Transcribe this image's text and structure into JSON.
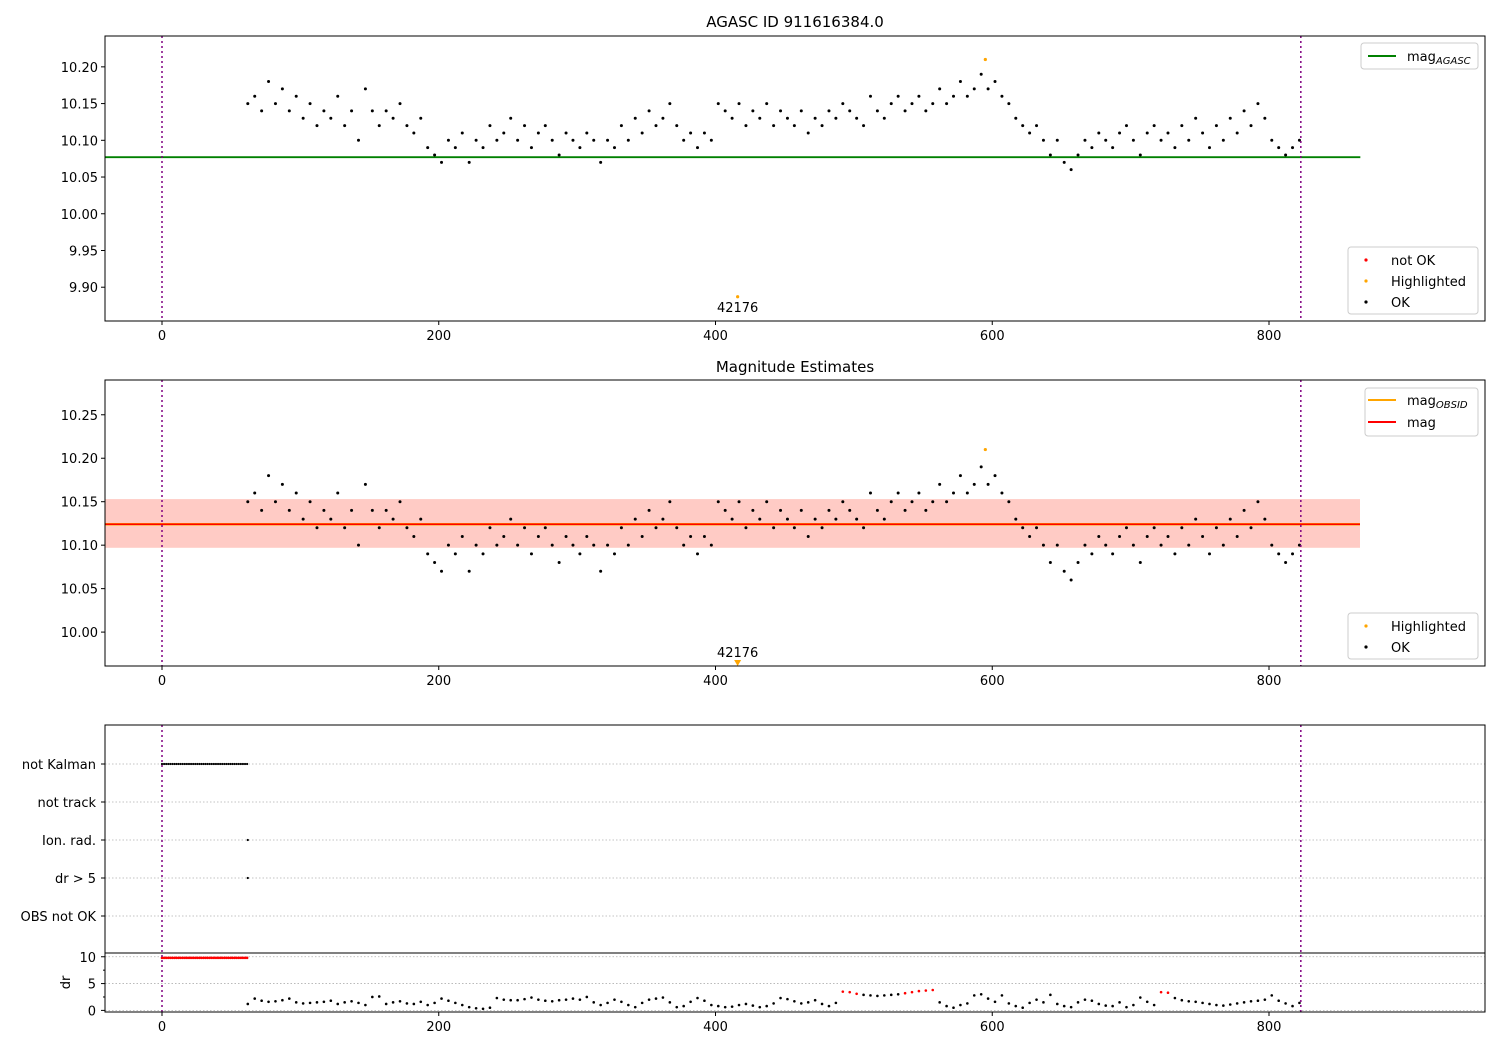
{
  "chart_data": [
    {
      "type": "scatter",
      "title": "AGASC ID 911616384.0",
      "xlim": [
        -41,
        956
      ],
      "ylim": [
        9.854,
        10.242
      ],
      "xticks": [
        0,
        200,
        400,
        600,
        800
      ],
      "yticks": [
        9.9,
        9.95,
        10.0,
        10.05,
        10.1,
        10.15,
        10.2
      ],
      "lines": [
        {
          "name": "mag_AGASC",
          "label": "mag",
          "sub": "AGASC",
          "y": 10.077,
          "x_range": [
            -41,
            866
          ],
          "color": "#008000"
        }
      ],
      "vlines": [
        0,
        823
      ],
      "highlighted": [
        {
          "x": 595,
          "y": 10.21
        },
        {
          "x": 416,
          "y": 9.887
        }
      ],
      "annotation": {
        "text": "42176",
        "x": 416
      },
      "legend_top": "top-right",
      "legend_bottom": "bottom-right",
      "legend": [
        {
          "label": "not OK",
          "color": "#ff0000"
        },
        {
          "label": "Highlighted",
          "color": "#ffa500"
        },
        {
          "label": "OK",
          "color": "#000000"
        }
      ]
    },
    {
      "type": "scatter",
      "title": "Magnitude Estimates",
      "xlim": [
        -41,
        956
      ],
      "ylim": [
        9.961,
        10.29
      ],
      "xticks": [
        0,
        200,
        400,
        600,
        800
      ],
      "yticks": [
        10.0,
        10.05,
        10.1,
        10.15,
        10.2,
        10.25
      ],
      "lines": [
        {
          "name": "mag_OBSID",
          "label": "mag",
          "sub": "OBSID",
          "y": 10.124,
          "color": "#ffa500"
        },
        {
          "name": "mag",
          "label": "mag",
          "sub": "",
          "y": 10.124,
          "color": "#ff0000"
        }
      ],
      "band": [
        10.097,
        10.153
      ],
      "vlines": [
        0,
        823
      ],
      "highlighted": [
        {
          "x": 595,
          "y": 10.21
        }
      ],
      "offscale_marker": {
        "x": 416,
        "text": "42176"
      },
      "legend": [
        {
          "label": "Highlighted",
          "color": "#ffa500"
        },
        {
          "label": "OK",
          "color": "#000000"
        }
      ]
    },
    {
      "type": "scatter",
      "title": "",
      "flags": [
        "not Kalman",
        "not track",
        "Ion. rad.",
        "dr > 5",
        "OBS not OK"
      ],
      "flag_points": {
        "not Kalman": [
          0,
          62
        ],
        "Ion. rad.": [
          62
        ],
        "dr > 5": [
          62
        ]
      },
      "dr_label": "dr",
      "dr_ylim": [
        -0.3,
        10.7
      ],
      "dr_yticks": [
        0,
        5,
        10
      ],
      "dr_red_threshold": 3,
      "dr_not_kalman": 9.8,
      "xticks": [
        0,
        200,
        400,
        600,
        800
      ],
      "vlines": [
        0,
        823
      ]
    }
  ],
  "series": {
    "x_start": 62,
    "x_step": 5,
    "mag": [
      10.15,
      10.16,
      10.14,
      10.18,
      10.15,
      10.17,
      10.14,
      10.16,
      10.13,
      10.15,
      10.12,
      10.14,
      10.13,
      10.16,
      10.12,
      10.14,
      10.1,
      10.17,
      10.14,
      10.12,
      10.14,
      10.13,
      10.15,
      10.12,
      10.11,
      10.13,
      10.09,
      10.08,
      10.07,
      10.1,
      10.09,
      10.11,
      10.07,
      10.1,
      10.09,
      10.12,
      10.1,
      10.11,
      10.13,
      10.1,
      10.12,
      10.09,
      10.11,
      10.12,
      10.1,
      10.08,
      10.11,
      10.1,
      10.09,
      10.11,
      10.1,
      10.07,
      10.1,
      10.09,
      10.12,
      10.1,
      10.13,
      10.11,
      10.14,
      10.12,
      10.13,
      10.15,
      10.12,
      10.1,
      10.11,
      10.09,
      10.11,
      10.1,
      10.15,
      10.14,
      10.13,
      10.15,
      10.12,
      10.14,
      10.13,
      10.15,
      10.12,
      10.14,
      10.13,
      10.12,
      10.14,
      10.11,
      10.13,
      10.12,
      10.14,
      10.13,
      10.15,
      10.14,
      10.13,
      10.12,
      10.16,
      10.14,
      10.13,
      10.15,
      10.16,
      10.14,
      10.15,
      10.16,
      10.14,
      10.15,
      10.17,
      10.15,
      10.16,
      10.18,
      10.16,
      10.17,
      10.19,
      10.17,
      10.18,
      10.16,
      10.15,
      10.13,
      10.12,
      10.11,
      10.12,
      10.1,
      10.08,
      10.1,
      10.07,
      10.06,
      10.08,
      10.1,
      10.09,
      10.11,
      10.1,
      10.09,
      10.11,
      10.12,
      10.1,
      10.08,
      10.11,
      10.12,
      10.1,
      10.11,
      10.09,
      10.12,
      10.1,
      10.13,
      10.11,
      10.09,
      10.12,
      10.1,
      10.13,
      10.11,
      10.14,
      10.12,
      10.15,
      10.13,
      10.1,
      10.09,
      10.08,
      10.09,
      10.1
    ],
    "dr": [
      1.2,
      2.2,
      1.8,
      1.6,
      1.7,
      1.9,
      2.2,
      1.5,
      1.3,
      1.4,
      1.5,
      1.6,
      1.8,
      1.2,
      1.5,
      1.7,
      1.4,
      1.0,
      2.5,
      2.6,
      1.2,
      1.5,
      1.7,
      1.3,
      1.2,
      1.6,
      1.0,
      1.4,
      2.2,
      1.8,
      1.4,
      1.0,
      0.6,
      0.4,
      0.3,
      0.5,
      2.3,
      2.0,
      1.9,
      1.9,
      2.1,
      2.4,
      2.0,
      1.8,
      1.7,
      1.9,
      2.0,
      2.2,
      2.0,
      2.5,
      1.5,
      1.0,
      1.4,
      2.0,
      1.6,
      1.0,
      0.6,
      1.4,
      2.0,
      2.2,
      2.4,
      1.5,
      0.6,
      0.8,
      1.6,
      2.3,
      1.8,
      1.0,
      0.8,
      0.6,
      0.7,
      1.0,
      1.2,
      0.9,
      0.6,
      0.8,
      1.3,
      2.3,
      2.1,
      1.7,
      1.3,
      1.5,
      1.9,
      1.2,
      0.8,
      1.4,
      3.5,
      3.4,
      3.1,
      2.9,
      2.8,
      2.7,
      2.8,
      2.9,
      3.0,
      3.2,
      3.4,
      3.6,
      3.7,
      3.8,
      1.5,
      0.8,
      0.5,
      1.0,
      1.3,
      2.8,
      3.0,
      2.2,
      1.6,
      2.8,
      1.3,
      0.8,
      0.5,
      1.4,
      2.0,
      1.5,
      2.9,
      1.2,
      0.8,
      0.6,
      1.5,
      2.0,
      1.8,
      1.2,
      0.9,
      0.8,
      1.5,
      0.6,
      1.0,
      2.4,
      1.6,
      1.0,
      3.4,
      3.3,
      2.3,
      1.9,
      1.7,
      1.6,
      1.4,
      1.2,
      1.0,
      0.9,
      1.1,
      1.3,
      1.5,
      1.7,
      1.8,
      2.0,
      2.8,
      1.8,
      1.3,
      0.8,
      1.4
    ]
  }
}
